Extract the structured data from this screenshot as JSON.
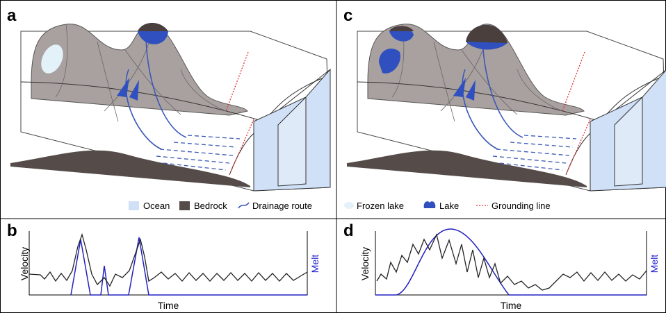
{
  "panels": [
    {
      "label": "a",
      "legend": [
        "Ocean",
        "Bedrock",
        "Drainage route"
      ]
    },
    {
      "label": "b",
      "y_label": "Velocity",
      "y2_label": "Melt",
      "x_label": "Time"
    },
    {
      "label": "c",
      "legend": [
        "Frozen lake",
        "Lake",
        "Grounding line"
      ]
    },
    {
      "label": "d",
      "y_label": "Velocity",
      "y2_label": "Melt",
      "x_label": "Time"
    }
  ]
}
